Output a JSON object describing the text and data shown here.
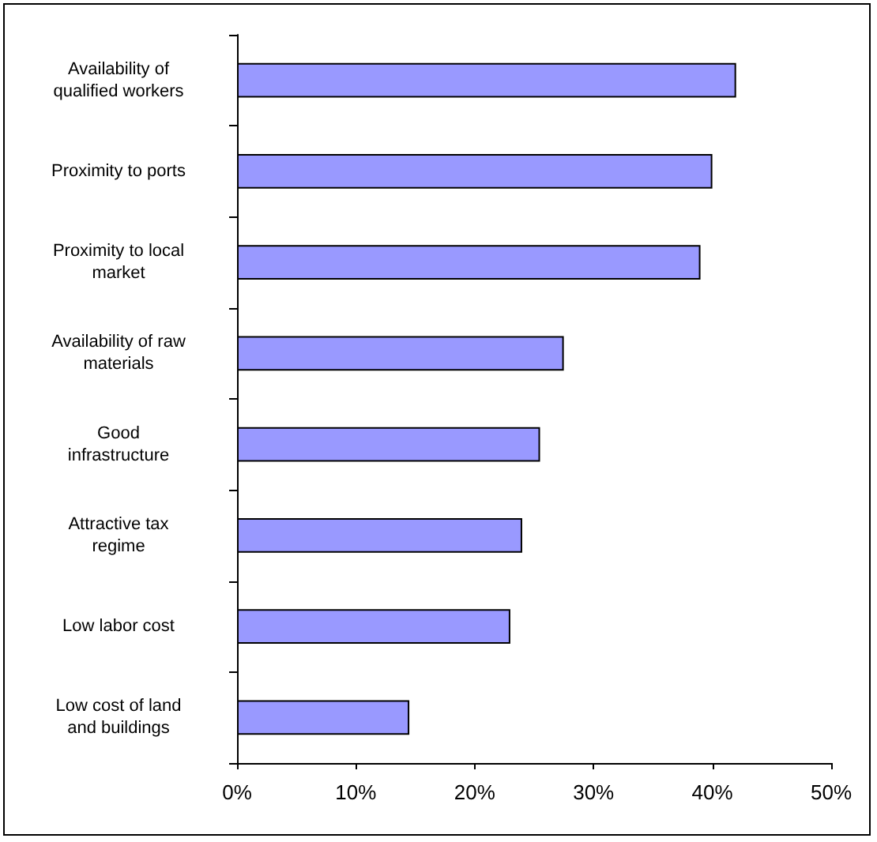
{
  "chart_data": {
    "type": "bar",
    "orientation": "horizontal",
    "categories": [
      "Availability of\nqualified workers",
      "Proximity to ports",
      "Proximity to local\nmarket",
      "Availability of raw\nmaterials",
      "Good\ninfrastructure",
      "Attractive tax\nregime",
      "Low labor cost",
      "Low cost of land\nand buildings"
    ],
    "values": [
      42,
      40,
      39,
      27.5,
      25.5,
      24,
      23,
      14.5
    ],
    "color": "#9999ff",
    "xlim": [
      0,
      50
    ],
    "xticks": [
      {
        "value": 0,
        "label": "0%"
      },
      {
        "value": 10,
        "label": "10%"
      },
      {
        "value": 20,
        "label": "20%"
      },
      {
        "value": 30,
        "label": "30%"
      },
      {
        "value": 40,
        "label": "40%"
      },
      {
        "value": 50,
        "label": "50%"
      }
    ],
    "grid": false
  }
}
